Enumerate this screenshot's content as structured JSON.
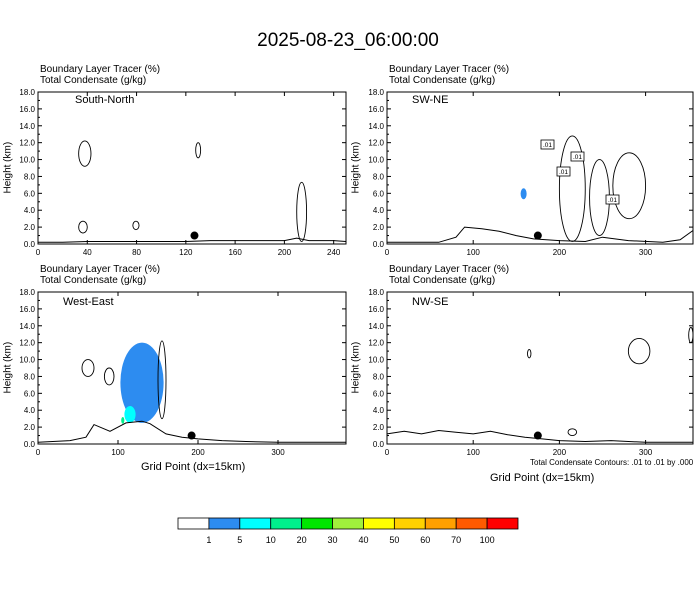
{
  "title": "2025-08-23_06:00:00",
  "footnote": "Total Condensate Contours: .01 to .01 by .000",
  "colorbar": {
    "colors": [
      "#ffffff",
      "#2d8cf0",
      "#00ffff",
      "#00f08c",
      "#00e600",
      "#a0f03c",
      "#ffff00",
      "#ffd200",
      "#ffa000",
      "#ff5a00",
      "#ff0000"
    ],
    "labels": [
      "1",
      "5",
      "10",
      "20",
      "30",
      "40",
      "50",
      "60",
      "70",
      "100"
    ]
  },
  "panels": [
    {
      "id": "south-north",
      "line1": "Boundary Layer Tracer   (%)",
      "line2": "Total Condensate   (g/kg)",
      "name": "South-North",
      "ylabel": "Height (km)",
      "xlabel": "",
      "xticks": [
        "0",
        "40",
        "80",
        "120",
        "160",
        "200",
        "240"
      ],
      "xrange": [
        0,
        250
      ],
      "yticks": [
        "0.0",
        "2.0",
        "4.0",
        "6.0",
        "8.0",
        "10.0",
        "12.0",
        "14.0",
        "16.0",
        "18.0"
      ],
      "yrange": [
        0,
        18
      ],
      "dot_x": 127,
      "contour_labels": []
    },
    {
      "id": "sw-ne",
      "line1": "Boundary Layer Tracer   (%)",
      "line2": "Total Condensate   (g/kg)",
      "name": "SW-NE",
      "ylabel": "Height (km)",
      "xlabel": "",
      "xticks": [
        "0",
        "100",
        "200",
        "300"
      ],
      "xrange": [
        0,
        355
      ],
      "yticks": [
        "0.0",
        "2.0",
        "4.0",
        "6.0",
        "8.0",
        "10.0",
        "12.0",
        "14.0",
        "16.0",
        "18.0"
      ],
      "yrange": [
        0,
        18
      ],
      "dot_x": 175,
      "contour_labels": [
        ".01",
        ".01",
        ".01",
        ".01"
      ]
    },
    {
      "id": "west-east",
      "line1": "Boundary Layer Tracer   (%)",
      "line2": "Total Condensate   (g/kg)",
      "name": "West-East",
      "ylabel": "Height (km)",
      "xlabel": "Grid Point (dx=15km)",
      "xticks": [
        "0",
        "100",
        "200",
        "300"
      ],
      "xrange": [
        0,
        385
      ],
      "yticks": [
        "0.0",
        "2.0",
        "4.0",
        "6.0",
        "8.0",
        "10.0",
        "12.0",
        "14.0",
        "16.0",
        "18.0"
      ],
      "yrange": [
        0,
        18
      ],
      "dot_x": 192,
      "contour_labels": []
    },
    {
      "id": "nw-se",
      "line1": "Boundary Layer Tracer   (%)",
      "line2": "Total Condensate   (g/kg)",
      "name": "NW-SE",
      "ylabel": "Height (km)",
      "xlabel": "Grid Point (dx=15km)",
      "xticks": [
        "0",
        "100",
        "200",
        "300"
      ],
      "xrange": [
        0,
        355
      ],
      "yticks": [
        "0.0",
        "2.0",
        "4.0",
        "6.0",
        "8.0",
        "10.0",
        "12.0",
        "14.0",
        "16.0",
        "18.0"
      ],
      "yrange": [
        0,
        18
      ],
      "dot_x": 175,
      "contour_labels": []
    }
  ],
  "chart_data": [
    {
      "type": "heatmap",
      "panel": "south-north",
      "x_unit": "grid point",
      "y_unit": "km",
      "marker": {
        "x": 127,
        "y": 1.0
      },
      "terrain": [
        [
          0,
          0.2
        ],
        [
          20,
          0.2
        ],
        [
          40,
          0.3
        ],
        [
          60,
          0.3
        ],
        [
          80,
          0.3
        ],
        [
          100,
          0.3
        ],
        [
          120,
          0.3
        ],
        [
          140,
          0.4
        ],
        [
          160,
          0.4
        ],
        [
          180,
          0.4
        ],
        [
          200,
          0.4
        ],
        [
          210,
          0.7
        ],
        [
          220,
          0.4
        ],
        [
          240,
          0.4
        ],
        [
          250,
          0.3
        ]
      ],
      "shaded_tracer": [],
      "condensate_contours": [
        {
          "level": 0.01,
          "x_range": [
            33,
            43
          ],
          "y_range": [
            9.2,
            12.2
          ]
        },
        {
          "level": 0.01,
          "x_range": [
            128,
            132
          ],
          "y_range": [
            10.2,
            12.0
          ]
        },
        {
          "level": 0.01,
          "x_range": [
            210,
            218
          ],
          "y_range": [
            0.3,
            7.3
          ]
        },
        {
          "level": 0.01,
          "x_range": [
            33,
            40
          ],
          "y_range": [
            1.3,
            2.7
          ]
        },
        {
          "level": 0.01,
          "x_range": [
            77,
            82
          ],
          "y_range": [
            1.7,
            2.7
          ]
        }
      ]
    },
    {
      "type": "heatmap",
      "panel": "sw-ne",
      "x_unit": "grid point",
      "y_unit": "km",
      "marker": {
        "x": 175,
        "y": 1.0
      },
      "terrain": [
        [
          0,
          0.2
        ],
        [
          60,
          0.2
        ],
        [
          80,
          0.8
        ],
        [
          90,
          2.0
        ],
        [
          110,
          1.8
        ],
        [
          130,
          1.5
        ],
        [
          150,
          1.0
        ],
        [
          170,
          0.6
        ],
        [
          200,
          0.4
        ],
        [
          230,
          0.3
        ],
        [
          250,
          0.8
        ],
        [
          280,
          0.4
        ],
        [
          320,
          0.2
        ],
        [
          340,
          0.5
        ],
        [
          355,
          1.6
        ]
      ],
      "shaded_tracer": [
        {
          "range_percent": "1-5",
          "x_range": [
            155,
            162
          ],
          "y_range": [
            5.3,
            6.6
          ]
        }
      ],
      "condensate_contours": [
        {
          "level": 0.01,
          "x_range": [
            200,
            230
          ],
          "y_range": [
            0.3,
            12.8
          ]
        },
        {
          "level": 0.01,
          "x_range": [
            235,
            258
          ],
          "y_range": [
            1.0,
            10.0
          ]
        },
        {
          "level": 0.01,
          "x_range": [
            262,
            300
          ],
          "y_range": [
            3.0,
            10.8
          ]
        }
      ]
    },
    {
      "type": "heatmap",
      "panel": "west-east",
      "x_unit": "grid point",
      "y_unit": "km",
      "marker": {
        "x": 192,
        "y": 1.0
      },
      "terrain": [
        [
          0,
          0.2
        ],
        [
          40,
          0.4
        ],
        [
          60,
          0.8
        ],
        [
          70,
          2.3
        ],
        [
          90,
          1.5
        ],
        [
          110,
          2.5
        ],
        [
          130,
          2.7
        ],
        [
          140,
          2.4
        ],
        [
          160,
          1.2
        ],
        [
          180,
          0.8
        ],
        [
          200,
          0.6
        ],
        [
          230,
          0.4
        ],
        [
          260,
          0.3
        ],
        [
          300,
          0.2
        ],
        [
          385,
          0.2
        ]
      ],
      "shaded_tracer": [
        {
          "range_percent": "1-5",
          "x_range": [
            103,
            157
          ],
          "y_range": [
            2.5,
            12.0
          ]
        },
        {
          "range_percent": "5-10",
          "x_range": [
            108,
            122
          ],
          "y_range": [
            2.5,
            4.5
          ]
        },
        {
          "range_percent": "10-20",
          "x_range": [
            104,
            108
          ],
          "y_range": [
            2.4,
            3.2
          ]
        }
      ],
      "condensate_contours": [
        {
          "level": 0.01,
          "x_range": [
            150,
            160
          ],
          "y_range": [
            3.0,
            12.2
          ]
        },
        {
          "level": 0.01,
          "x_range": [
            55,
            70
          ],
          "y_range": [
            8.0,
            10.0
          ]
        },
        {
          "level": 0.01,
          "x_range": [
            83,
            95
          ],
          "y_range": [
            7.0,
            9.0
          ]
        }
      ]
    },
    {
      "type": "heatmap",
      "panel": "nw-se",
      "x_unit": "grid point",
      "y_unit": "km",
      "marker": {
        "x": 175,
        "y": 1.0
      },
      "terrain": [
        [
          0,
          1.2
        ],
        [
          20,
          1.5
        ],
        [
          40,
          1.2
        ],
        [
          60,
          1.6
        ],
        [
          80,
          1.4
        ],
        [
          100,
          1.2
        ],
        [
          120,
          1.5
        ],
        [
          140,
          1.1
        ],
        [
          160,
          0.8
        ],
        [
          180,
          0.6
        ],
        [
          200,
          0.4
        ],
        [
          230,
          0.3
        ],
        [
          260,
          0.4
        ],
        [
          300,
          0.2
        ],
        [
          355,
          0.2
        ]
      ],
      "shaded_tracer": [],
      "condensate_contours": [
        {
          "level": 0.01,
          "x_range": [
            280,
            305
          ],
          "y_range": [
            9.5,
            12.5
          ]
        },
        {
          "level": 0.01,
          "x_range": [
            350,
            355
          ],
          "y_range": [
            12.0,
            13.8
          ]
        },
        {
          "level": 0.01,
          "x_range": [
            163,
            167
          ],
          "y_range": [
            10.2,
            11.2
          ]
        },
        {
          "level": 0.01,
          "x_range": [
            210,
            220
          ],
          "y_range": [
            1.0,
            1.8
          ]
        }
      ]
    }
  ]
}
